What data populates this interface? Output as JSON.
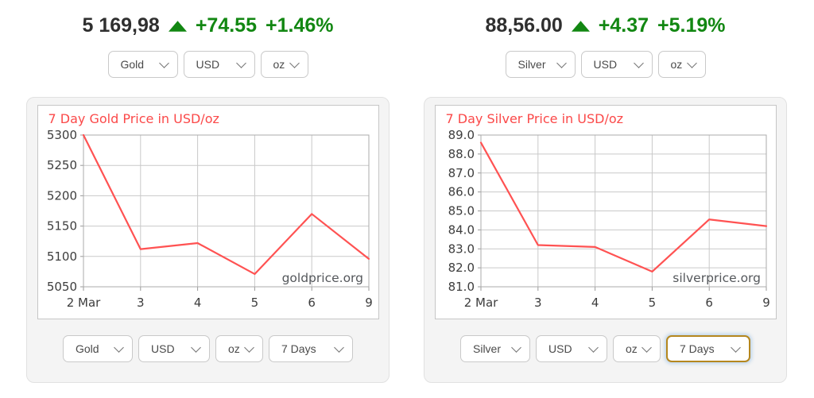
{
  "colors": {
    "up_green": "#128712",
    "chart_red": "#fb4949",
    "line_red": "#ff5252",
    "focus_gold_border": "#b5871e",
    "price_dark": "#2f2f2f",
    "panel_bg": "#f4f4f4"
  },
  "widgets": [
    {
      "metal": "gold",
      "price": "5 169,98",
      "change_icon": "up-triangle",
      "change_abs": "+74.55",
      "change_pct": "+1.46%",
      "top_selects": [
        "Gold",
        "USD",
        "oz"
      ],
      "bottom_selects": [
        "Gold",
        "USD",
        "oz",
        "7 Days"
      ]
    },
    {
      "metal": "silver",
      "price": "88,56.00",
      "change_icon": "up-triangle",
      "change_abs": "+4.37",
      "change_pct": "+5.19%",
      "top_selects": [
        "Silver",
        "USD",
        "oz"
      ],
      "bottom_selects": [
        "Silver",
        "USD",
        "oz",
        "7 Days"
      ],
      "focused_select": "7 Days"
    }
  ],
  "chart_data": [
    {
      "type": "line",
      "title": "7 Day Gold Price in USD/oz",
      "x": [
        "2 Mar",
        "3",
        "4",
        "5",
        "6",
        "9"
      ],
      "values": [
        5300,
        5112,
        5122,
        5071,
        5170,
        5096
      ],
      "ylim": [
        5050,
        5300
      ],
      "yticks": [
        "5300",
        "5250",
        "5200",
        "5150",
        "5100",
        "5050"
      ],
      "watermark": "goldprice.org",
      "line_color": "#ff5252",
      "grid": true,
      "legend": "none",
      "xlabel": "",
      "ylabel": ""
    },
    {
      "type": "line",
      "title": "7 Day Silver Price in USD/oz",
      "x": [
        "2 Mar",
        "3",
        "4",
        "5",
        "6",
        "9"
      ],
      "values": [
        88.6,
        83.2,
        83.1,
        81.8,
        84.55,
        84.2
      ],
      "ylim": [
        81.0,
        89.0
      ],
      "yticks": [
        "89.0",
        "88.0",
        "87.0",
        "86.0",
        "85.0",
        "84.0",
        "83.0",
        "82.0",
        "81.0"
      ],
      "watermark": "silverprice.org",
      "line_color": "#ff5252",
      "grid": true,
      "legend": "none",
      "xlabel": "",
      "ylabel": ""
    }
  ]
}
